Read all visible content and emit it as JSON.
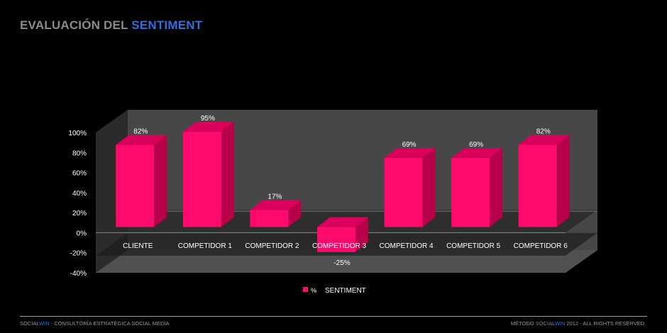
{
  "header": {
    "title_part1": "EVALUACIÓN DEL ",
    "title_part2": "SENTIMENT"
  },
  "chart_data": {
    "type": "bar",
    "categories": [
      "CLIENTE",
      "COMPETIDOR 1",
      "COMPETIDOR 2",
      "COMPETIDOR 3",
      "COMPETIDOR 4",
      "COMPETIDOR 5",
      "COMPETIDOR 6"
    ],
    "series": [
      {
        "name": "% SENTIMENT",
        "values": [
          82,
          95,
          17,
          -25,
          69,
          69,
          82
        ]
      }
    ],
    "data_labels": [
      "82%",
      "95%",
      "17%",
      "-25%",
      "69%",
      "69%",
      "82%"
    ],
    "y_ticks": [
      "100%",
      "80%",
      "60%",
      "40%",
      "20%",
      "0%",
      "-20%",
      "-40%"
    ],
    "ylim": [
      -40,
      100
    ],
    "legend_position": "bottom",
    "colors": {
      "bar_front": "#ff0a6c",
      "bar_side": "#b8004a",
      "bar_top": "#d8005c"
    }
  },
  "legend": {
    "marker": "%",
    "label": "SENTIMENT"
  },
  "footer": {
    "left_a": "SOCIAL",
    "left_b": "WIN",
    "left_c": " - CONSULTORÍA ESTRATÉGICA SOCIAL MEDIA",
    "right_a": "MÉTODO ",
    "right_b": "SOCIAL",
    "right_c": "WIN",
    "right_d": " 2012 - ALL RIGHTS RESERVED"
  }
}
